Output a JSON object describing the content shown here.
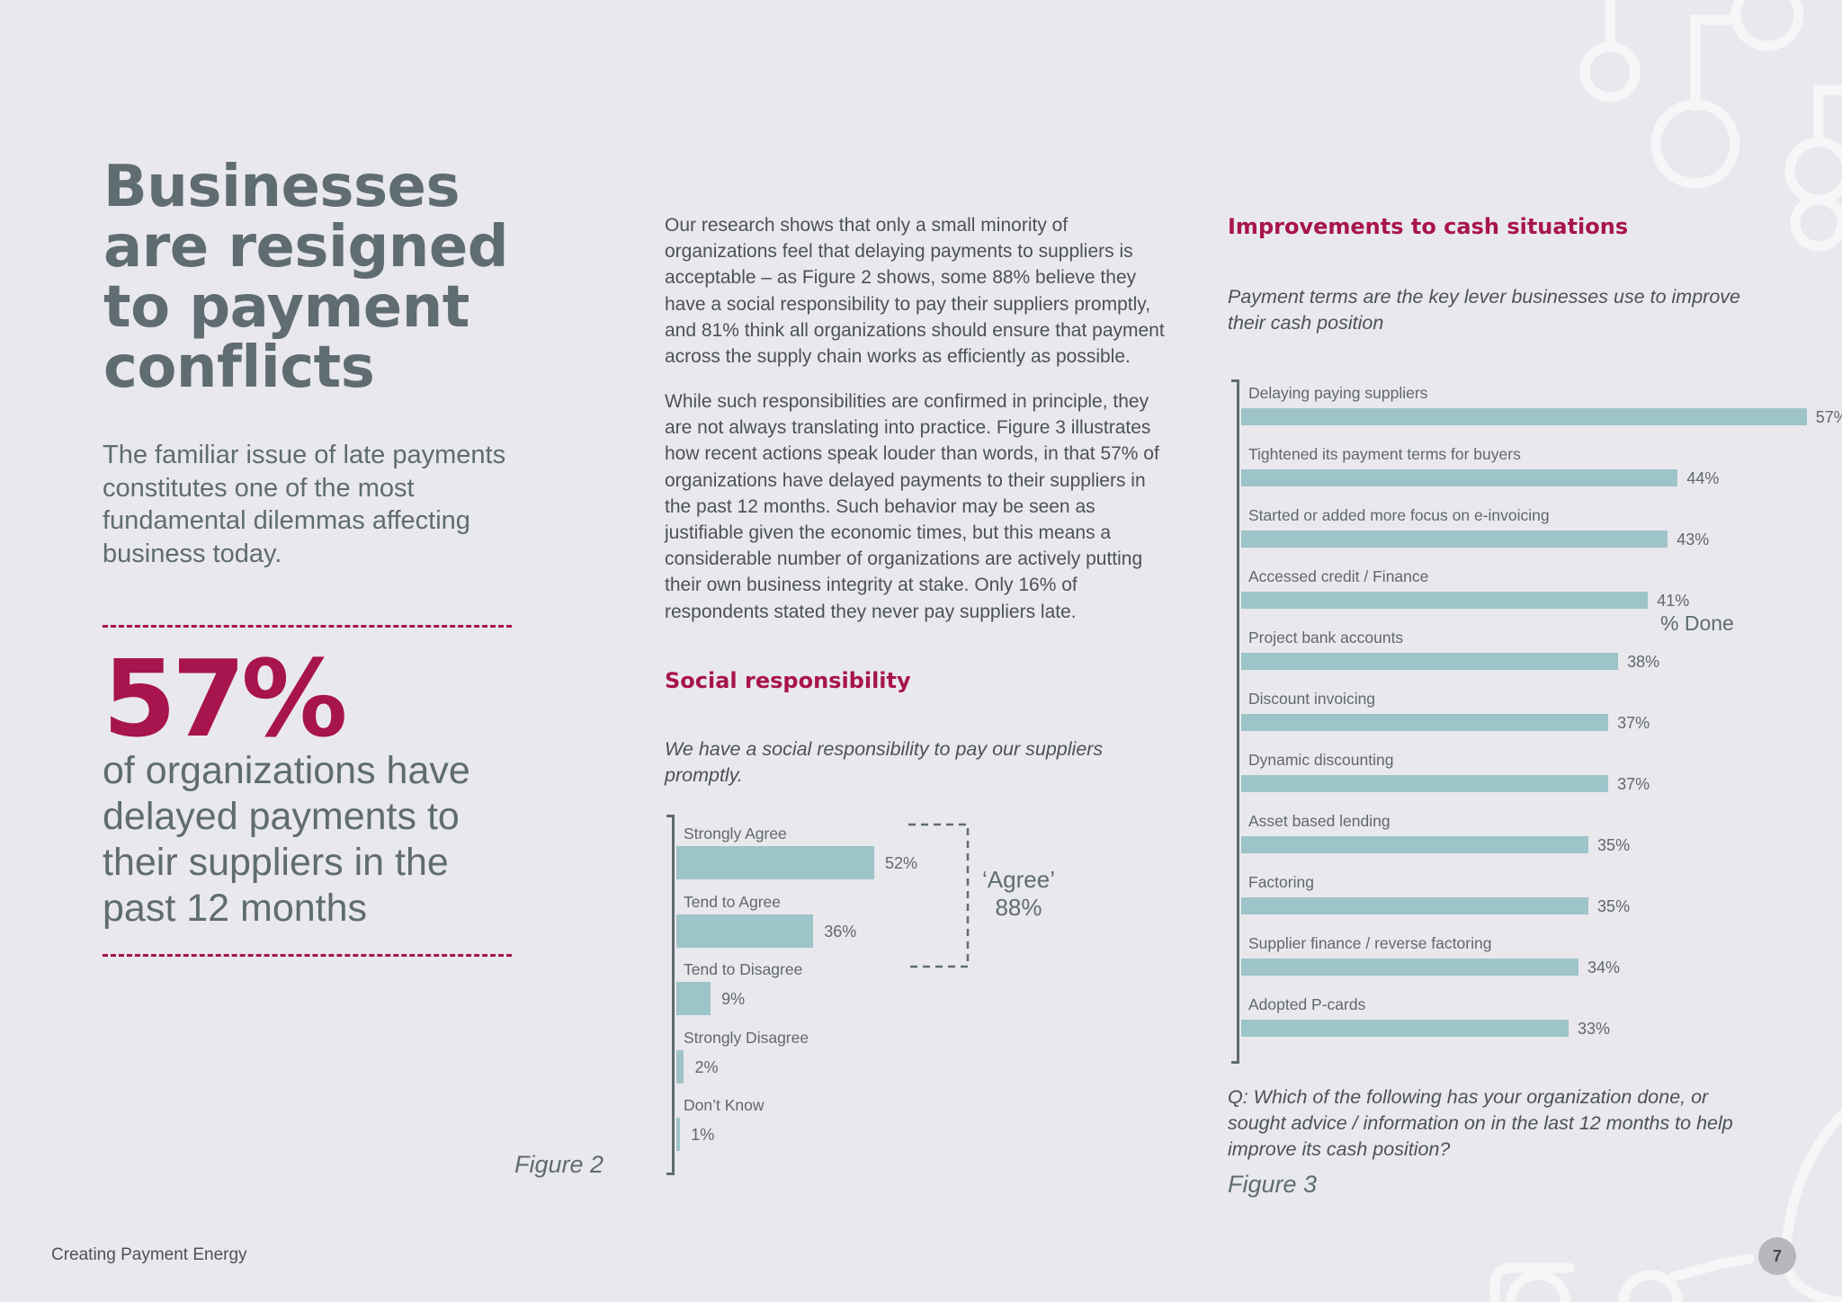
{
  "left": {
    "headline": "Businesses are resigned to payment conflicts",
    "intro": "The familiar issue of late payments constitutes one of the most fundamental dilemmas affecting business today.",
    "big_stat": "57%",
    "stat_text": "of organizations have delayed payments to their suppliers in the past 12 months"
  },
  "middle": {
    "para1": "Our research shows that only a small minority of organizations feel that delaying payments to suppliers is acceptable – as Figure 2 shows, some 88% believe they have a social responsibility to pay their suppliers promptly, and 81% think all organizations should ensure that payment across the supply chain works as efficiently as possible.",
    "para2": "While such responsibilities are confirmed in principle, they are not always translating into practice. Figure 3 illustrates how recent actions speak louder than words, in that 57% of organizations have delayed payments to their suppliers in the past 12 months. Such behavior may be seen as justifiable given the economic times, but this means a considerable number of organizations are actively putting their own business integrity at stake. Only 16% of respondents stated they never pay suppliers late.",
    "section_title": "Social responsibility",
    "statement": "We have a social responsibility to pay our suppliers promptly.",
    "agree_label": "‘Agree’",
    "agree_value": "88%",
    "figure_label": "Figure 2"
  },
  "right": {
    "section_title": "Improvements to cash situations",
    "subtitle": "Payment terms are the key lever businesses use to improve their cash position",
    "series_label": "% Done",
    "question": "Q: Which of the following has your organization done, or sought advice / information on in the last 12 months to help improve its cash position?",
    "figure_label": "Figure 3"
  },
  "footer": {
    "title": "Creating Payment Energy",
    "page_number": "7"
  },
  "colors": {
    "accent": "#a8144d",
    "bar": "#9cc4c9",
    "heading_gray": "#5f6c72",
    "background": "#e9e8ec"
  },
  "chart_data": [
    {
      "type": "bar",
      "orientation": "horizontal",
      "categories": [
        "Strongly Agree",
        "Tend to Agree",
        "Tend to Disagree",
        "Strongly Disagree",
        "Don’t Know"
      ],
      "values": [
        52,
        36,
        9,
        2,
        1
      ],
      "value_labels": [
        "52%",
        "36%",
        "9%",
        "2%",
        "1%"
      ],
      "title": "Social responsibility",
      "xlim": [
        0,
        100
      ],
      "grid": false,
      "annotation": "‘Agree’ 88%"
    },
    {
      "type": "bar",
      "orientation": "horizontal",
      "categories": [
        "Delaying paying suppliers",
        "Tightened its payment terms for buyers",
        "Started or added more focus on e-invoicing",
        "Accessed credit / Finance",
        "Project bank accounts",
        "Discount invoicing",
        "Dynamic discounting",
        "Asset based lending",
        "Factoring",
        "Supplier finance / reverse factoring",
        "Adopted P-cards"
      ],
      "values": [
        57,
        44,
        43,
        41,
        38,
        37,
        37,
        35,
        35,
        34,
        33
      ],
      "value_labels": [
        "57%",
        "44%",
        "43%",
        "41%",
        "38%",
        "37%",
        "37%",
        "35%",
        "35%",
        "34%",
        "33%"
      ],
      "title": "Improvements to cash situations",
      "series": [
        {
          "name": "% Done",
          "values": [
            57,
            44,
            43,
            41,
            38,
            37,
            37,
            35,
            35,
            34,
            33
          ]
        }
      ],
      "xlim": [
        0,
        100
      ],
      "grid": false,
      "legend": "right"
    }
  ]
}
